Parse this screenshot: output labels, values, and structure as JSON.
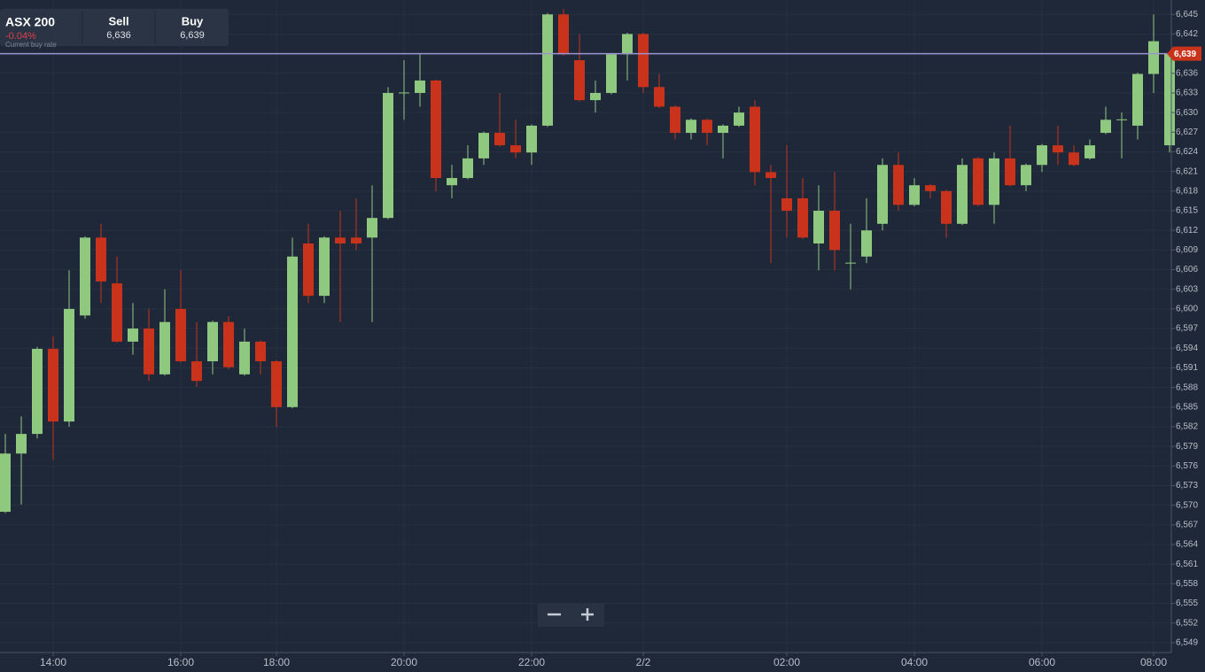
{
  "header": {
    "instrument": "ASX 200",
    "change": "-0.04%",
    "note": "Current buy rate",
    "sell_label": "Sell",
    "sell": "6,636",
    "buy_label": "Buy",
    "buy": "6,639"
  },
  "chart_data": {
    "type": "candlestick",
    "categories": [
      null,
      null,
      null,
      "14:00",
      null,
      null,
      null,
      null,
      null,
      null,
      null,
      "16:00",
      null,
      null,
      null,
      null,
      null,
      "18:00",
      null,
      null,
      null,
      null,
      null,
      null,
      null,
      "20:00",
      null,
      null,
      null,
      null,
      null,
      null,
      null,
      "22:00",
      null,
      null,
      null,
      null,
      null,
      null,
      "2/2",
      null,
      null,
      null,
      null,
      null,
      null,
      null,
      null,
      "02:00",
      null,
      null,
      null,
      null,
      null,
      null,
      null,
      "04:00",
      null,
      null,
      null,
      null,
      null,
      null,
      null,
      "06:00",
      null,
      null,
      null,
      null,
      null,
      null,
      "08:00",
      null
    ],
    "open": [
      6569.0,
      6577.9,
      6580.9,
      6593.9,
      6582.8,
      6599.0,
      6610.9,
      6603.9,
      6595.0,
      6597.0,
      6590.0,
      6600.0,
      6592.0,
      6592.0,
      6598.0,
      6590.0,
      6595.0,
      6592.0,
      6585.0,
      6610.0,
      6602.0,
      6610.9,
      6610.9,
      6610.9,
      6613.9,
      6633.0,
      6633.0,
      6634.9,
      6618.9,
      6620.0,
      6623.0,
      6626.9,
      6625.0,
      6623.9,
      6628.0,
      6645.0,
      6638.0,
      6631.9,
      6633.0,
      6638.9,
      6642.0,
      6633.9,
      6630.9,
      6626.9,
      6628.9,
      6626.9,
      6628.0,
      6630.9,
      6620.9,
      6616.9,
      6616.9,
      6610.0,
      6615.0,
      6607.0,
      6608.0,
      6613.0,
      6622.0,
      6615.9,
      6618.9,
      6618.0,
      6613.0,
      6623.0,
      6615.9,
      6623.0,
      6618.9,
      6622.0,
      6625.0,
      6623.9,
      6623.0,
      6626.9,
      6628.9,
      6628.0,
      6635.9,
      6625.0
    ],
    "high": [
      6580.9,
      6583.6,
      6594.2,
      6595.8,
      6605.9,
      6611.1,
      6613.0,
      6608.0,
      6600.9,
      6600.0,
      6603.0,
      6605.9,
      6598.0,
      6598.2,
      6598.9,
      6597.0,
      6595.2,
      6592.2,
      6610.9,
      6613.0,
      6611.1,
      6615.0,
      6616.9,
      6618.9,
      6633.9,
      6638.0,
      6638.9,
      6635.0,
      6622.0,
      6625.0,
      6627.1,
      6633.0,
      6628.9,
      6628.2,
      6645.2,
      6645.8,
      6642.0,
      6634.9,
      6639.1,
      6642.2,
      6642.2,
      6635.9,
      6631.1,
      6629.1,
      6629.1,
      6628.2,
      6630.9,
      6631.9,
      6622.0,
      6625.0,
      6620.0,
      6618.9,
      6620.9,
      6613.0,
      6616.9,
      6623.0,
      6623.9,
      6620.0,
      6619.1,
      6618.2,
      6623.0,
      6623.2,
      6623.9,
      6628.0,
      6622.2,
      6625.2,
      6628.0,
      6625.0,
      6625.9,
      6630.9,
      6630.0,
      6636.1,
      6645.0,
      6639.2
    ],
    "low": [
      6568.8,
      6570.1,
      6580.2,
      6576.9,
      6582.0,
      6598.5,
      6600.9,
      6594.8,
      6593.0,
      6589.0,
      6589.8,
      6591.8,
      6588.1,
      6590.0,
      6590.8,
      6589.8,
      6590.0,
      6582.0,
      6584.8,
      6600.9,
      6600.9,
      6598.0,
      6609.0,
      6598.0,
      6613.7,
      6628.9,
      6630.9,
      6618.0,
      6616.9,
      6619.8,
      6622.0,
      6624.8,
      6623.0,
      6622.0,
      6627.8,
      6638.7,
      6631.7,
      6630.0,
      6632.8,
      6634.9,
      6633.0,
      6630.7,
      6625.9,
      6625.9,
      6625.0,
      6623.0,
      6627.8,
      6618.9,
      6607.0,
      6610.9,
      6610.7,
      6605.9,
      6605.9,
      6603.0,
      6607.0,
      6612.0,
      6615.0,
      6615.7,
      6616.9,
      6610.9,
      6612.8,
      6615.7,
      6613.0,
      6618.7,
      6618.0,
      6620.9,
      6622.0,
      6621.8,
      6622.8,
      6626.7,
      6623.0,
      6625.9,
      6633.0,
      6623.9
    ],
    "close": [
      6577.9,
      6580.9,
      6593.9,
      6582.8,
      6600.0,
      6610.9,
      6604.2,
      6595.0,
      6597.0,
      6590.0,
      6598.0,
      6592.0,
      6589.0,
      6598.0,
      6591.1,
      6595.0,
      6592.0,
      6585.0,
      6608.0,
      6602.0,
      6610.9,
      6610.0,
      6610.0,
      6613.9,
      6633.0,
      6633.0,
      6634.9,
      6620.0,
      6620.0,
      6623.0,
      6626.9,
      6625.0,
      6623.9,
      6628.0,
      6645.0,
      6638.9,
      6631.9,
      6633.0,
      6638.9,
      6642.0,
      6633.9,
      6630.9,
      6626.9,
      6628.9,
      6626.9,
      6628.0,
      6630.0,
      6620.9,
      6620.0,
      6615.0,
      6610.9,
      6615.0,
      6609.0,
      6607.0,
      6612.0,
      6622.0,
      6615.9,
      6618.9,
      6618.0,
      6613.0,
      6622.0,
      6615.9,
      6623.0,
      6618.9,
      6622.0,
      6625.0,
      6623.9,
      6622.0,
      6625.0,
      6628.9,
      6628.9,
      6635.9,
      6640.9,
      6639.0
    ],
    "up_color": "#8fc97f",
    "down_color": "#c9331c",
    "current_price": {
      "value": 6639,
      "label": "6,639"
    },
    "current_price_color": "#9d93d3",
    "ylim": [
      6547.5,
      6647.2
    ],
    "yticks": [
      {
        "value": 6549,
        "label": "6,549"
      },
      {
        "value": 6552,
        "label": "6,552"
      },
      {
        "value": 6555,
        "label": "6,555"
      },
      {
        "value": 6558,
        "label": "6,558"
      },
      {
        "value": 6561,
        "label": "6,561"
      },
      {
        "value": 6564,
        "label": "6,564"
      },
      {
        "value": 6567,
        "label": "6,567"
      },
      {
        "value": 6570,
        "label": "6,570"
      },
      {
        "value": 6573,
        "label": "6,573"
      },
      {
        "value": 6576,
        "label": "6,576"
      },
      {
        "value": 6579,
        "label": "6,579"
      },
      {
        "value": 6582,
        "label": "6,582"
      },
      {
        "value": 6585,
        "label": "6,585"
      },
      {
        "value": 6588,
        "label": "6,588"
      },
      {
        "value": 6591,
        "label": "6,591"
      },
      {
        "value": 6594,
        "label": "6,594"
      },
      {
        "value": 6597,
        "label": "6,597"
      },
      {
        "value": 6600,
        "label": "6,600"
      },
      {
        "value": 6603,
        "label": "6,603"
      },
      {
        "value": 6606,
        "label": "6,606"
      },
      {
        "value": 6609,
        "label": "6,609"
      },
      {
        "value": 6612,
        "label": "6,612"
      },
      {
        "value": 6615,
        "label": "6,615"
      },
      {
        "value": 6618,
        "label": "6,618"
      },
      {
        "value": 6621,
        "label": "6,621"
      },
      {
        "value": 6624,
        "label": "6,624"
      },
      {
        "value": 6627,
        "label": "6,627"
      },
      {
        "value": 6630,
        "label": "6,630"
      },
      {
        "value": 6633,
        "label": "6,633"
      },
      {
        "value": 6636,
        "label": "6,636"
      },
      {
        "value": 6639,
        "label": "6,639"
      },
      {
        "value": 6642,
        "label": "6,642"
      },
      {
        "value": 6645,
        "label": "6,645"
      }
    ],
    "grid": true
  }
}
